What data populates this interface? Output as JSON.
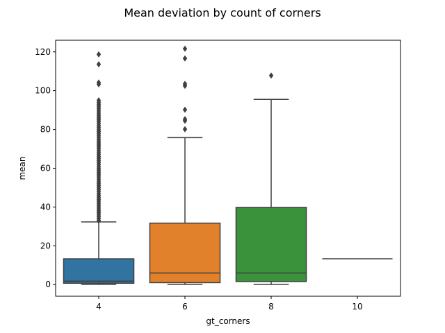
{
  "chart_data": {
    "type": "box",
    "title": "Mean deviation by count of corners",
    "xlabel": "gt_corners",
    "ylabel": "mean",
    "ylim": [
      -6,
      126
    ],
    "yticks": [
      0,
      20,
      40,
      60,
      80,
      100,
      120
    ],
    "grid": false,
    "categories": [
      "4",
      "6",
      "8",
      "10"
    ],
    "boxes": [
      {
        "category": "4",
        "color": "#3274a1",
        "whisker_low": 0.1,
        "q1": 0.7,
        "median": 1.8,
        "q3": 13.3,
        "whisker_high": 32.3,
        "outliers": [
          33,
          34,
          35,
          36,
          37,
          38,
          39,
          40,
          41,
          42,
          43,
          44,
          45,
          46,
          47,
          48,
          49,
          50,
          51,
          52,
          53,
          54,
          55,
          56,
          57,
          58,
          59,
          60,
          61,
          62,
          63,
          64,
          65,
          66,
          67,
          68,
          69,
          70,
          71,
          72,
          73,
          74,
          75,
          76,
          77,
          78,
          79,
          80,
          81,
          82,
          83,
          84,
          85,
          86,
          87,
          88,
          89,
          90,
          91,
          92,
          93,
          94,
          95,
          103.3,
          104.2,
          113.6,
          118.7
        ]
      },
      {
        "category": "6",
        "color": "#e1812c",
        "whisker_low": 0.1,
        "q1": 1.0,
        "median": 6.0,
        "q3": 31.7,
        "whisker_high": 75.8,
        "outliers": [
          80.1,
          84.5,
          85.3,
          90.2,
          102.5,
          103.5,
          116.6,
          121.6
        ]
      },
      {
        "category": "8",
        "color": "#3a923a",
        "whisker_low": 0.1,
        "q1": 1.6,
        "median": 6.0,
        "q3": 39.8,
        "whisker_high": 95.5,
        "outliers": [
          107.8
        ]
      },
      {
        "category": "10",
        "color": "#c03d3e",
        "whisker_low": 13.3,
        "q1": 13.3,
        "median": 13.3,
        "q3": 13.3,
        "whisker_high": 13.3,
        "outliers": []
      }
    ]
  }
}
